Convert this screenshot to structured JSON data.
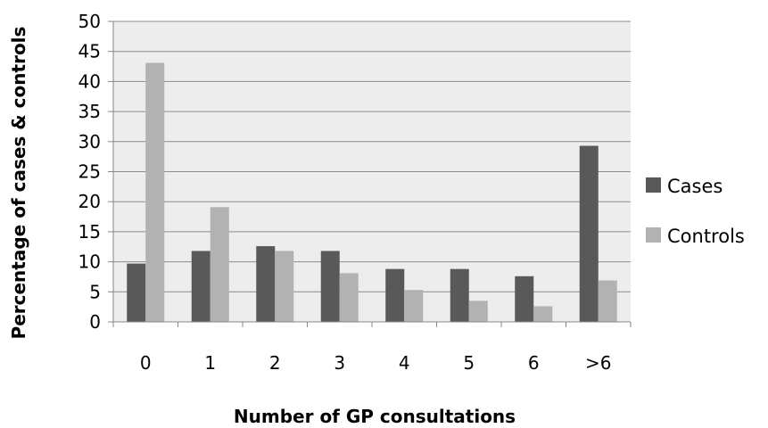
{
  "chart_data": {
    "type": "bar",
    "title": "",
    "xlabel": "Number of GP consultations",
    "ylabel": "Percentage of cases & controls",
    "categories": [
      "0",
      "1",
      "2",
      "3",
      "4",
      "5",
      "6",
      ">6"
    ],
    "series": [
      {
        "name": "Cases",
        "color": "#595959",
        "values": [
          9.7,
          11.8,
          12.6,
          11.8,
          8.8,
          8.8,
          7.6,
          29.3
        ]
      },
      {
        "name": "Controls",
        "color": "#b2b2b2",
        "values": [
          43.1,
          19.1,
          11.8,
          8.1,
          5.3,
          3.5,
          2.6,
          6.9
        ]
      }
    ],
    "ylim": [
      0,
      50
    ],
    "yticks": [
      "0",
      "5",
      "10",
      "15",
      "20",
      "25",
      "30",
      "35",
      "40",
      "45",
      "50"
    ],
    "grid": true,
    "plot_background": "#ededed",
    "legend_position": "right"
  }
}
